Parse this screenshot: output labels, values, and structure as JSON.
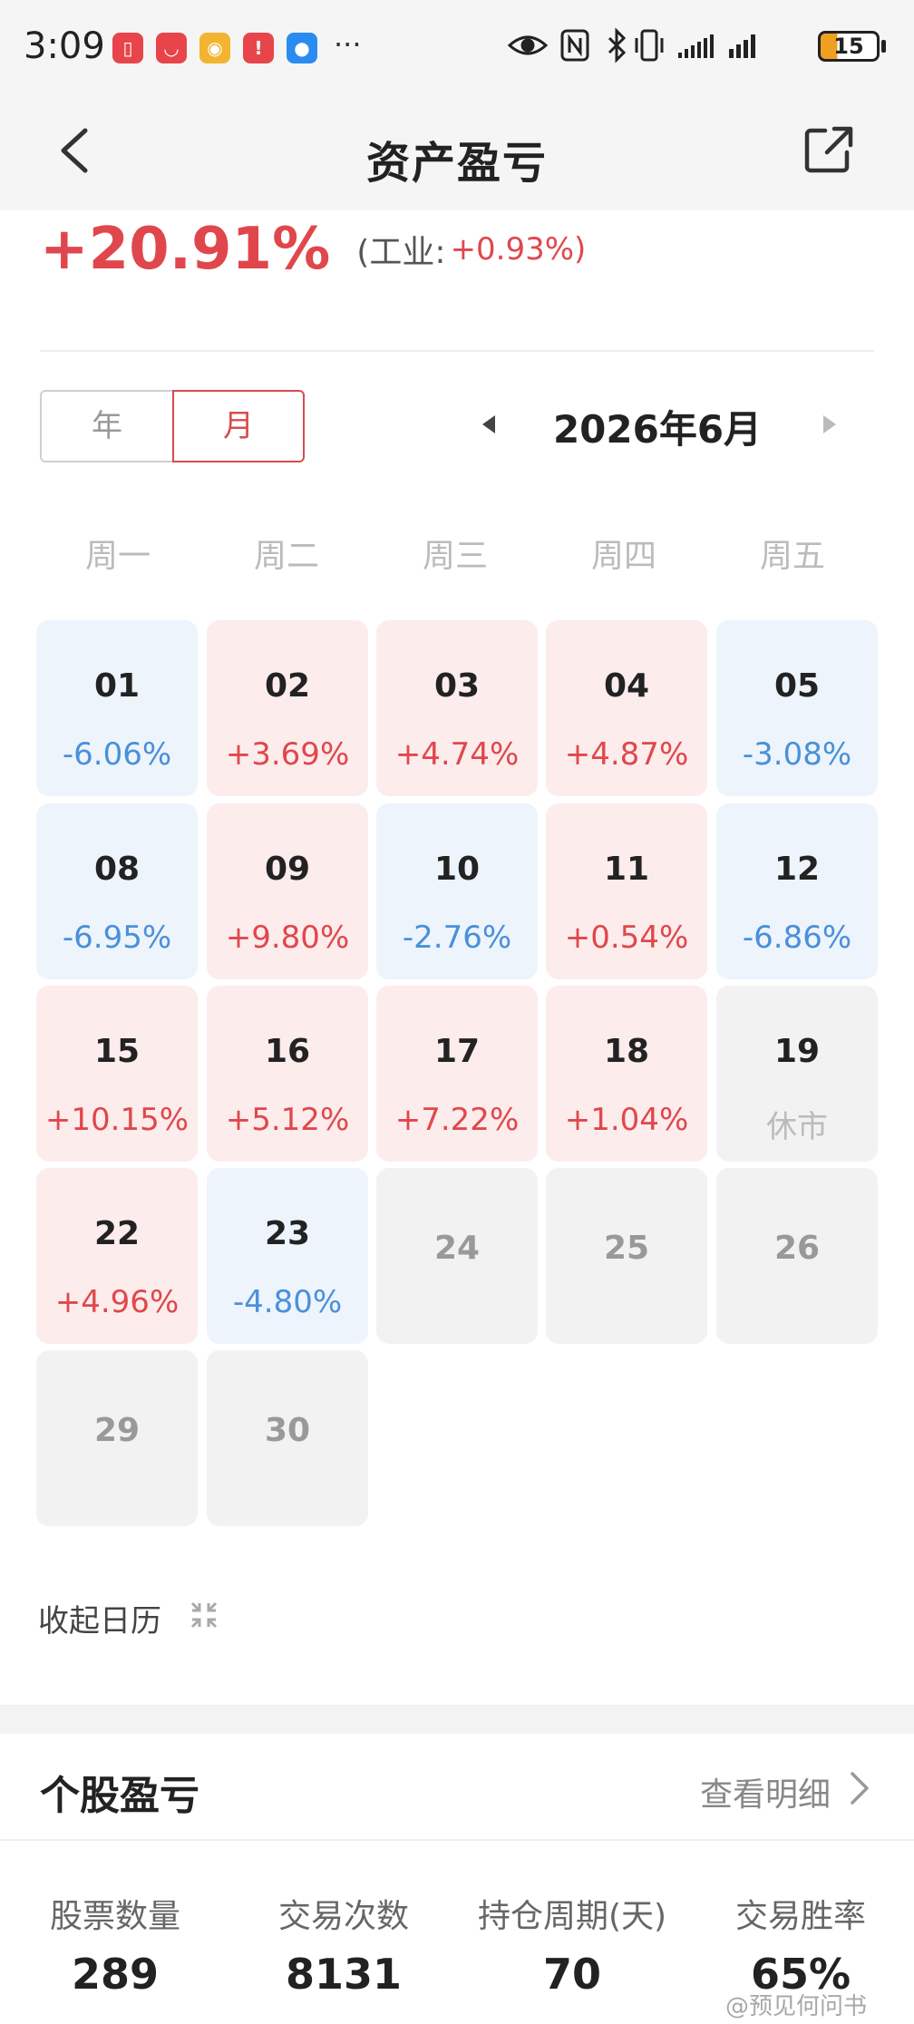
{
  "status_bar": {
    "time": "3:09",
    "more": "···",
    "battery": "15",
    "apps": [
      {
        "icon": "reader-icon",
        "color": "#e8454a",
        "glyph": "▯"
      },
      {
        "icon": "huawei-store-icon",
        "color": "#e8454a",
        "glyph": "◡"
      },
      {
        "icon": "weibo-icon",
        "color": "#f3b431",
        "glyph": "◉"
      },
      {
        "icon": "alert-app-icon",
        "color": "#e8454a",
        "glyph": "!"
      },
      {
        "icon": "message-app-icon",
        "color": "#2a8cf0",
        "glyph": "●"
      }
    ]
  },
  "header": {
    "title": "资产盈亏"
  },
  "performance": {
    "value": "+20.91%",
    "benchmark_label": "(工业:",
    "benchmark_value": "+0.93%)"
  },
  "period_toggle": {
    "year": "年",
    "month": "月",
    "selected": "月"
  },
  "calendar": {
    "month_label": "2026年6月",
    "weekdays": [
      "周一",
      "周二",
      "周三",
      "周四",
      "周五"
    ],
    "weeks": [
      [
        {
          "day": "01",
          "pct": "-6.06%",
          "state": "down"
        },
        {
          "day": "02",
          "pct": "+3.69%",
          "state": "up"
        },
        {
          "day": "03",
          "pct": "+4.74%",
          "state": "up"
        },
        {
          "day": "04",
          "pct": "+4.87%",
          "state": "up"
        },
        {
          "day": "05",
          "pct": "-3.08%",
          "state": "down"
        }
      ],
      [
        {
          "day": "08",
          "pct": "-6.95%",
          "state": "down"
        },
        {
          "day": "09",
          "pct": "+9.80%",
          "state": "up"
        },
        {
          "day": "10",
          "pct": "-2.76%",
          "state": "down"
        },
        {
          "day": "11",
          "pct": "+0.54%",
          "state": "up"
        },
        {
          "day": "12",
          "pct": "-6.86%",
          "state": "down"
        }
      ],
      [
        {
          "day": "15",
          "pct": "+10.15%",
          "state": "up"
        },
        {
          "day": "16",
          "pct": "+5.12%",
          "state": "up"
        },
        {
          "day": "17",
          "pct": "+7.22%",
          "state": "up"
        },
        {
          "day": "18",
          "pct": "+1.04%",
          "state": "up"
        },
        {
          "day": "19",
          "pct": "休市",
          "state": "closed"
        }
      ],
      [
        {
          "day": "22",
          "pct": "+4.96%",
          "state": "up"
        },
        {
          "day": "23",
          "pct": "-4.80%",
          "state": "down"
        },
        {
          "day": "24",
          "pct": "",
          "state": "future"
        },
        {
          "day": "25",
          "pct": "",
          "state": "future"
        },
        {
          "day": "26",
          "pct": "",
          "state": "future"
        }
      ],
      [
        {
          "day": "29",
          "pct": "",
          "state": "future"
        },
        {
          "day": "30",
          "pct": "",
          "state": "future"
        }
      ]
    ],
    "collapse_label": "收起日历"
  },
  "stock_pnl": {
    "title": "个股盈亏",
    "detail_link": "查看明细",
    "stats": [
      {
        "label": "股票数量",
        "value": "289"
      },
      {
        "label": "交易次数",
        "value": "8131"
      },
      {
        "label": "持仓周期(天)",
        "value": "70"
      },
      {
        "label": "交易胜率",
        "value": "65%"
      }
    ]
  },
  "watermark": "@预见何问书",
  "colors": {
    "up": "#e0474c",
    "down": "#4a90d9",
    "up_bg": "#fcecec",
    "down_bg": "#edf4fc",
    "closed_bg": "#f2f2f2"
  }
}
